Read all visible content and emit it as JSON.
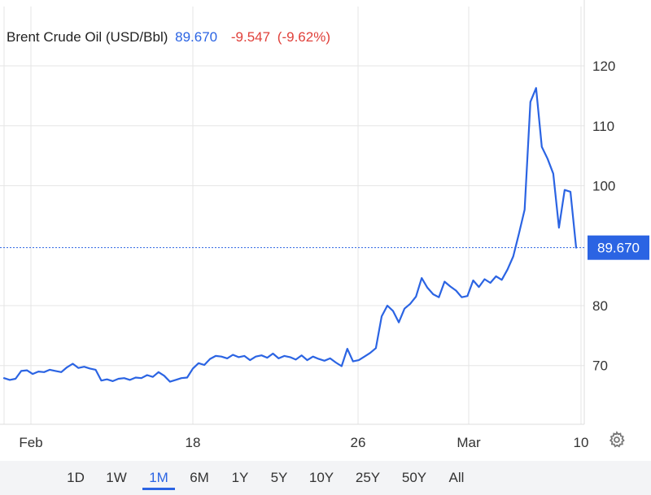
{
  "header": {
    "title": "Brent Crude Oil (USD/Bbl)",
    "price": "89.670",
    "change": "-9.547",
    "change_pct": "(-9.62%)"
  },
  "colors": {
    "line": "#2b64e3",
    "negative": "#e0403a",
    "grid": "#e6e6e6"
  },
  "ranges": {
    "items": [
      "1D",
      "1W",
      "1M",
      "6M",
      "1Y",
      "5Y",
      "10Y",
      "25Y",
      "50Y",
      "All"
    ],
    "active": "1M"
  },
  "icons": {
    "settings": "gear-icon"
  },
  "chart_data": {
    "type": "line",
    "title": "Brent Crude Oil (USD/Bbl)",
    "xlabel": "",
    "ylabel": "",
    "x_ticks": [
      "Feb",
      "18",
      "26",
      "Mar",
      "10"
    ],
    "y_ticks": [
      70,
      80,
      100,
      110,
      120
    ],
    "ylim": [
      60.2,
      129.9
    ],
    "grid": true,
    "legend": "none",
    "last_value_label": "89.670",
    "last_value": 89.67,
    "series": [
      {
        "values": [
          67.9,
          67.6,
          67.8,
          69.1,
          69.2,
          68.6,
          69.0,
          68.9,
          69.3,
          69.1,
          68.9,
          69.7,
          70.3,
          69.6,
          69.8,
          69.5,
          69.3,
          67.5,
          67.7,
          67.4,
          67.8,
          67.9,
          67.6,
          68.0,
          67.9,
          68.4,
          68.1,
          68.9,
          68.3,
          67.3,
          67.6,
          67.9,
          68.0,
          69.5,
          70.4,
          70.1,
          71.1,
          71.6,
          71.5,
          71.2,
          71.8,
          71.4,
          71.6,
          70.9,
          71.5,
          71.7,
          71.3,
          72.0,
          71.2,
          71.6,
          71.4,
          71.0,
          71.7,
          70.9,
          71.5,
          71.1,
          70.8,
          71.2,
          70.5,
          69.9,
          72.8,
          70.7,
          70.9,
          71.5,
          72.1,
          72.9,
          78.2,
          80.0,
          79.1,
          77.2,
          79.5,
          80.3,
          81.5,
          84.6,
          83.0,
          81.9,
          81.4,
          84.0,
          83.2,
          82.5,
          81.4,
          81.6,
          84.2,
          83.1,
          84.4,
          83.8,
          84.9,
          84.3,
          86.0,
          88.2,
          92.0,
          96.0,
          114.0,
          116.3,
          106.5,
          104.5,
          102.0,
          93.0,
          99.3,
          99.0,
          89.67
        ]
      }
    ]
  }
}
